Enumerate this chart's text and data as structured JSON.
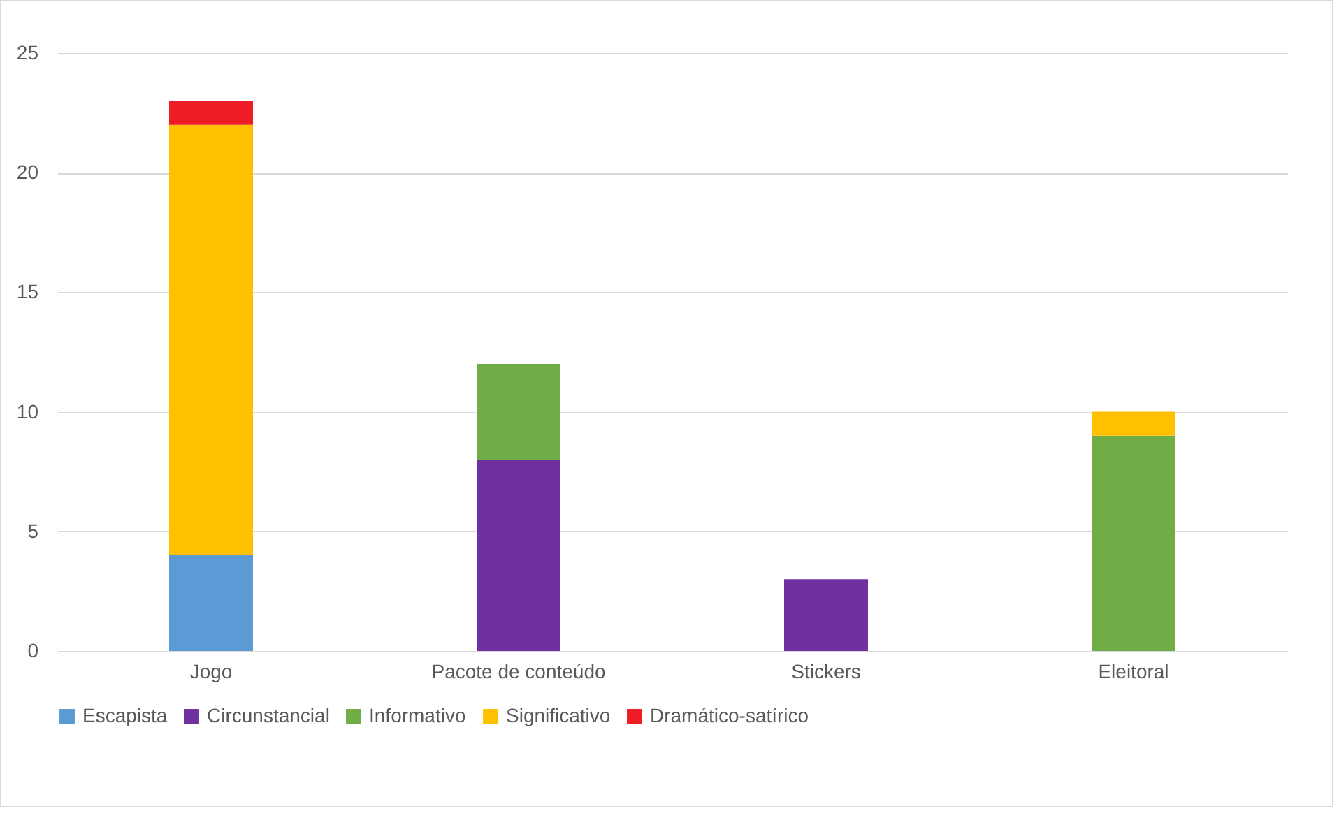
{
  "chart_data": {
    "type": "bar",
    "stacked": true,
    "categories": [
      "Jogo",
      "Pacote de conteúdo",
      "Stickers",
      "Eleitoral"
    ],
    "series": [
      {
        "name": "Escapista",
        "color": "#5b9bd5",
        "values": [
          4,
          null,
          null,
          null
        ]
      },
      {
        "name": "Circunstancial",
        "color": "#7030a0",
        "values": [
          null,
          8,
          3,
          null
        ]
      },
      {
        "name": "Informativo",
        "color": "#70ad47",
        "values": [
          null,
          4,
          null,
          9
        ]
      },
      {
        "name": "Significativo",
        "color": "#ffc000",
        "values": [
          18,
          null,
          null,
          1
        ]
      },
      {
        "name": "Dramático-satírico",
        "color": "#ee1c25",
        "values": [
          1,
          null,
          null,
          null
        ]
      }
    ],
    "ylim": [
      0,
      25
    ],
    "yticks": [
      0,
      5,
      10,
      15,
      20,
      25
    ],
    "grid": "y",
    "legend": "bottom"
  }
}
